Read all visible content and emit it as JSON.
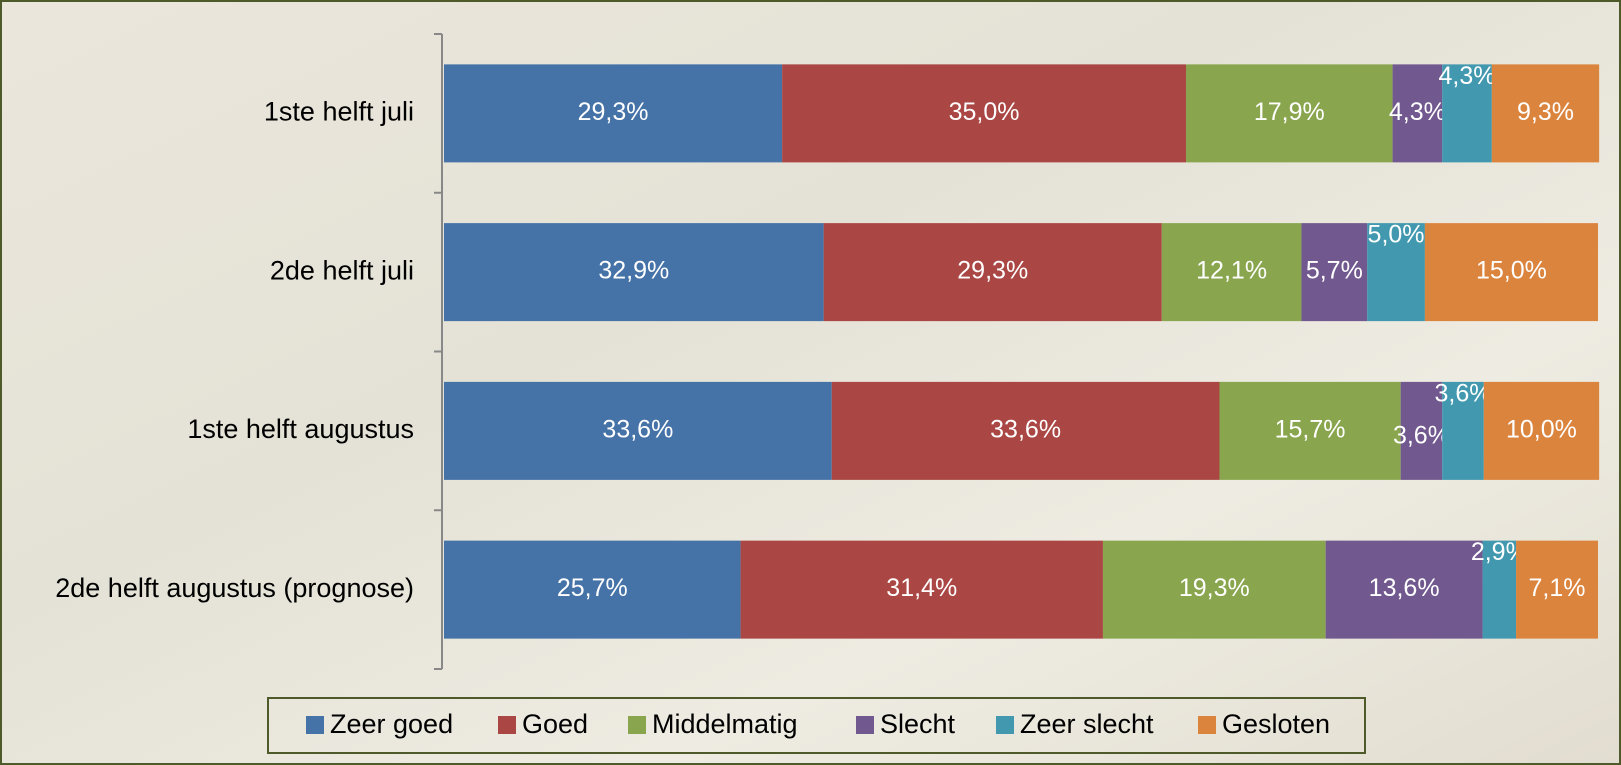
{
  "chart_data": {
    "type": "stacked-bar-horizontal",
    "categories": [
      "1ste helft juli",
      "2de helft juli",
      "1ste helft augustus",
      "2de helft augustus (prognose)"
    ],
    "xlim": [
      0,
      100
    ],
    "legend": "bottom",
    "series": [
      {
        "name": "Zeer goed",
        "color": "#4572a7",
        "values": [
          29.3,
          32.9,
          33.6,
          25.7
        ],
        "value_labels": [
          "29,3%",
          "32,9%",
          "33,6%",
          "25,7%"
        ]
      },
      {
        "name": "Goed",
        "color": "#aa4643",
        "values": [
          35.0,
          29.3,
          33.6,
          31.4
        ],
        "value_labels": [
          "35,0%",
          "29,3%",
          "33,6%",
          "31,4%"
        ]
      },
      {
        "name": "Middelmatig",
        "color": "#89a54e",
        "values": [
          17.9,
          12.1,
          15.7,
          19.3
        ],
        "value_labels": [
          "17,9%",
          "12,1%",
          "15,7%",
          "19,3%"
        ]
      },
      {
        "name": "Slecht",
        "color": "#71588f",
        "values": [
          4.3,
          5.7,
          3.6,
          13.6
        ],
        "value_labels": [
          "4,3%",
          "5,7%",
          "3,6%",
          "13,6%"
        ]
      },
      {
        "name": "Zeer slecht",
        "color": "#4198af",
        "values": [
          4.3,
          5.0,
          3.6,
          2.9
        ],
        "value_labels": [
          "4,3%",
          "5,0%",
          "3,6%",
          "2,9%"
        ]
      },
      {
        "name": "Gesloten",
        "color": "#db843d",
        "values": [
          9.3,
          15.0,
          10.0,
          7.1
        ],
        "value_labels": [
          "9,3%",
          "15,0%",
          "10,0%",
          "7,1%"
        ]
      }
    ]
  }
}
